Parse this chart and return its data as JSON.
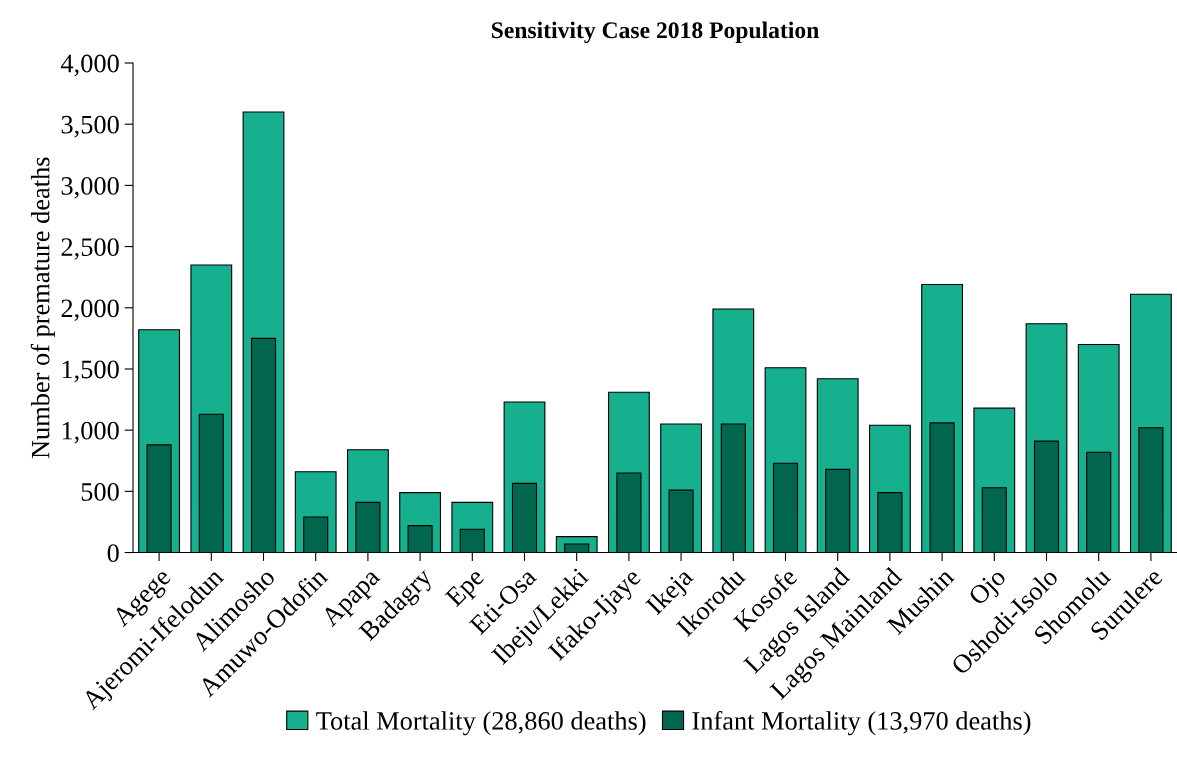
{
  "chart_data": {
    "type": "bar",
    "title": "Sensitivity Case 2018 Population",
    "ylabel": "Number of premature deaths",
    "categories": [
      "Agege",
      "Ajeromi-Ifelodun",
      "Alimosho",
      "Amuwo-Odofin",
      "Apapa",
      "Badagry",
      "Epe",
      "Eti-Osa",
      "Ibeju/Lekki",
      "Ifako-Ijaye",
      "Ikeja",
      "Ikorodu",
      "Kosofe",
      "Lagos Island",
      "Lagos Mainland",
      "Mushin",
      "Ojo",
      "Oshodi-Isolo",
      "Shomolu",
      "Surulere"
    ],
    "series": [
      {
        "name": "Total Mortality (28,860 deaths)",
        "color": "#17b08f",
        "values": [
          1820,
          2350,
          3600,
          660,
          840,
          490,
          410,
          1230,
          130,
          1310,
          1050,
          1990,
          1510,
          1420,
          1040,
          2190,
          1180,
          1870,
          1700,
          2110
        ]
      },
      {
        "name": "Infant Mortality (13,970 deaths)",
        "color": "#02664f",
        "values": [
          880,
          1130,
          1750,
          290,
          410,
          220,
          190,
          565,
          70,
          650,
          510,
          1050,
          730,
          680,
          490,
          1060,
          530,
          910,
          820,
          1020
        ]
      }
    ],
    "ylim": [
      0,
      4000
    ],
    "yticks": [
      {
        "value": 0,
        "label": "0"
      },
      {
        "value": 500,
        "label": "500"
      },
      {
        "value": 1000,
        "label": "1,000"
      },
      {
        "value": 1500,
        "label": "1,500"
      },
      {
        "value": 2000,
        "label": "2,000"
      },
      {
        "value": 2500,
        "label": "2,500"
      },
      {
        "value": 3000,
        "label": "3,000"
      },
      {
        "value": 3500,
        "label": "3,500"
      },
      {
        "value": 4000,
        "label": "4,000"
      }
    ],
    "grid": false,
    "legend": "bottom"
  }
}
